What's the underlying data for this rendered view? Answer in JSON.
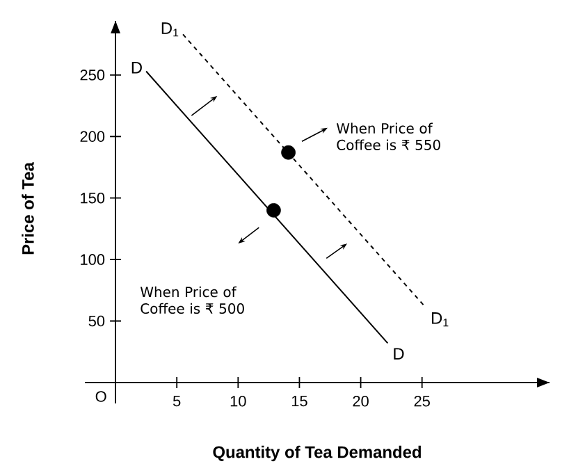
{
  "chart_data": {
    "type": "line",
    "xlabel": "Quantity of Tea Demanded",
    "ylabel": "Price of Tea",
    "xlim": [
      -2.5,
      35.4
    ],
    "ylim": [
      -17,
      294
    ],
    "xticks": [
      5,
      10,
      15,
      20,
      25
    ],
    "yticks": [
      50,
      100,
      150,
      200,
      250
    ],
    "grid": false,
    "legend": false,
    "series": [
      {
        "name": "D",
        "color": "#000000",
        "line_style": "solid",
        "marker": "none",
        "x": [
          2.5,
          22.2
        ],
        "values": [
          253,
          32
        ]
      },
      {
        "name": "D$_{1}$",
        "color": "#000000",
        "line_style": "dashed",
        "marker": "none",
        "x": [
          5.5,
          25.3
        ],
        "values": [
          283,
          61
        ]
      },
      {
        "type": "scatter",
        "color": "#000000",
        "marker": "circle",
        "x": [
          12.9,
          14.1
        ],
        "values": [
          140,
          187
        ]
      }
    ],
    "annotations": [
      "When Price of Coffee is ₹ 550",
      "When Price of Coffee is ₹ 500",
      "O"
    ]
  }
}
